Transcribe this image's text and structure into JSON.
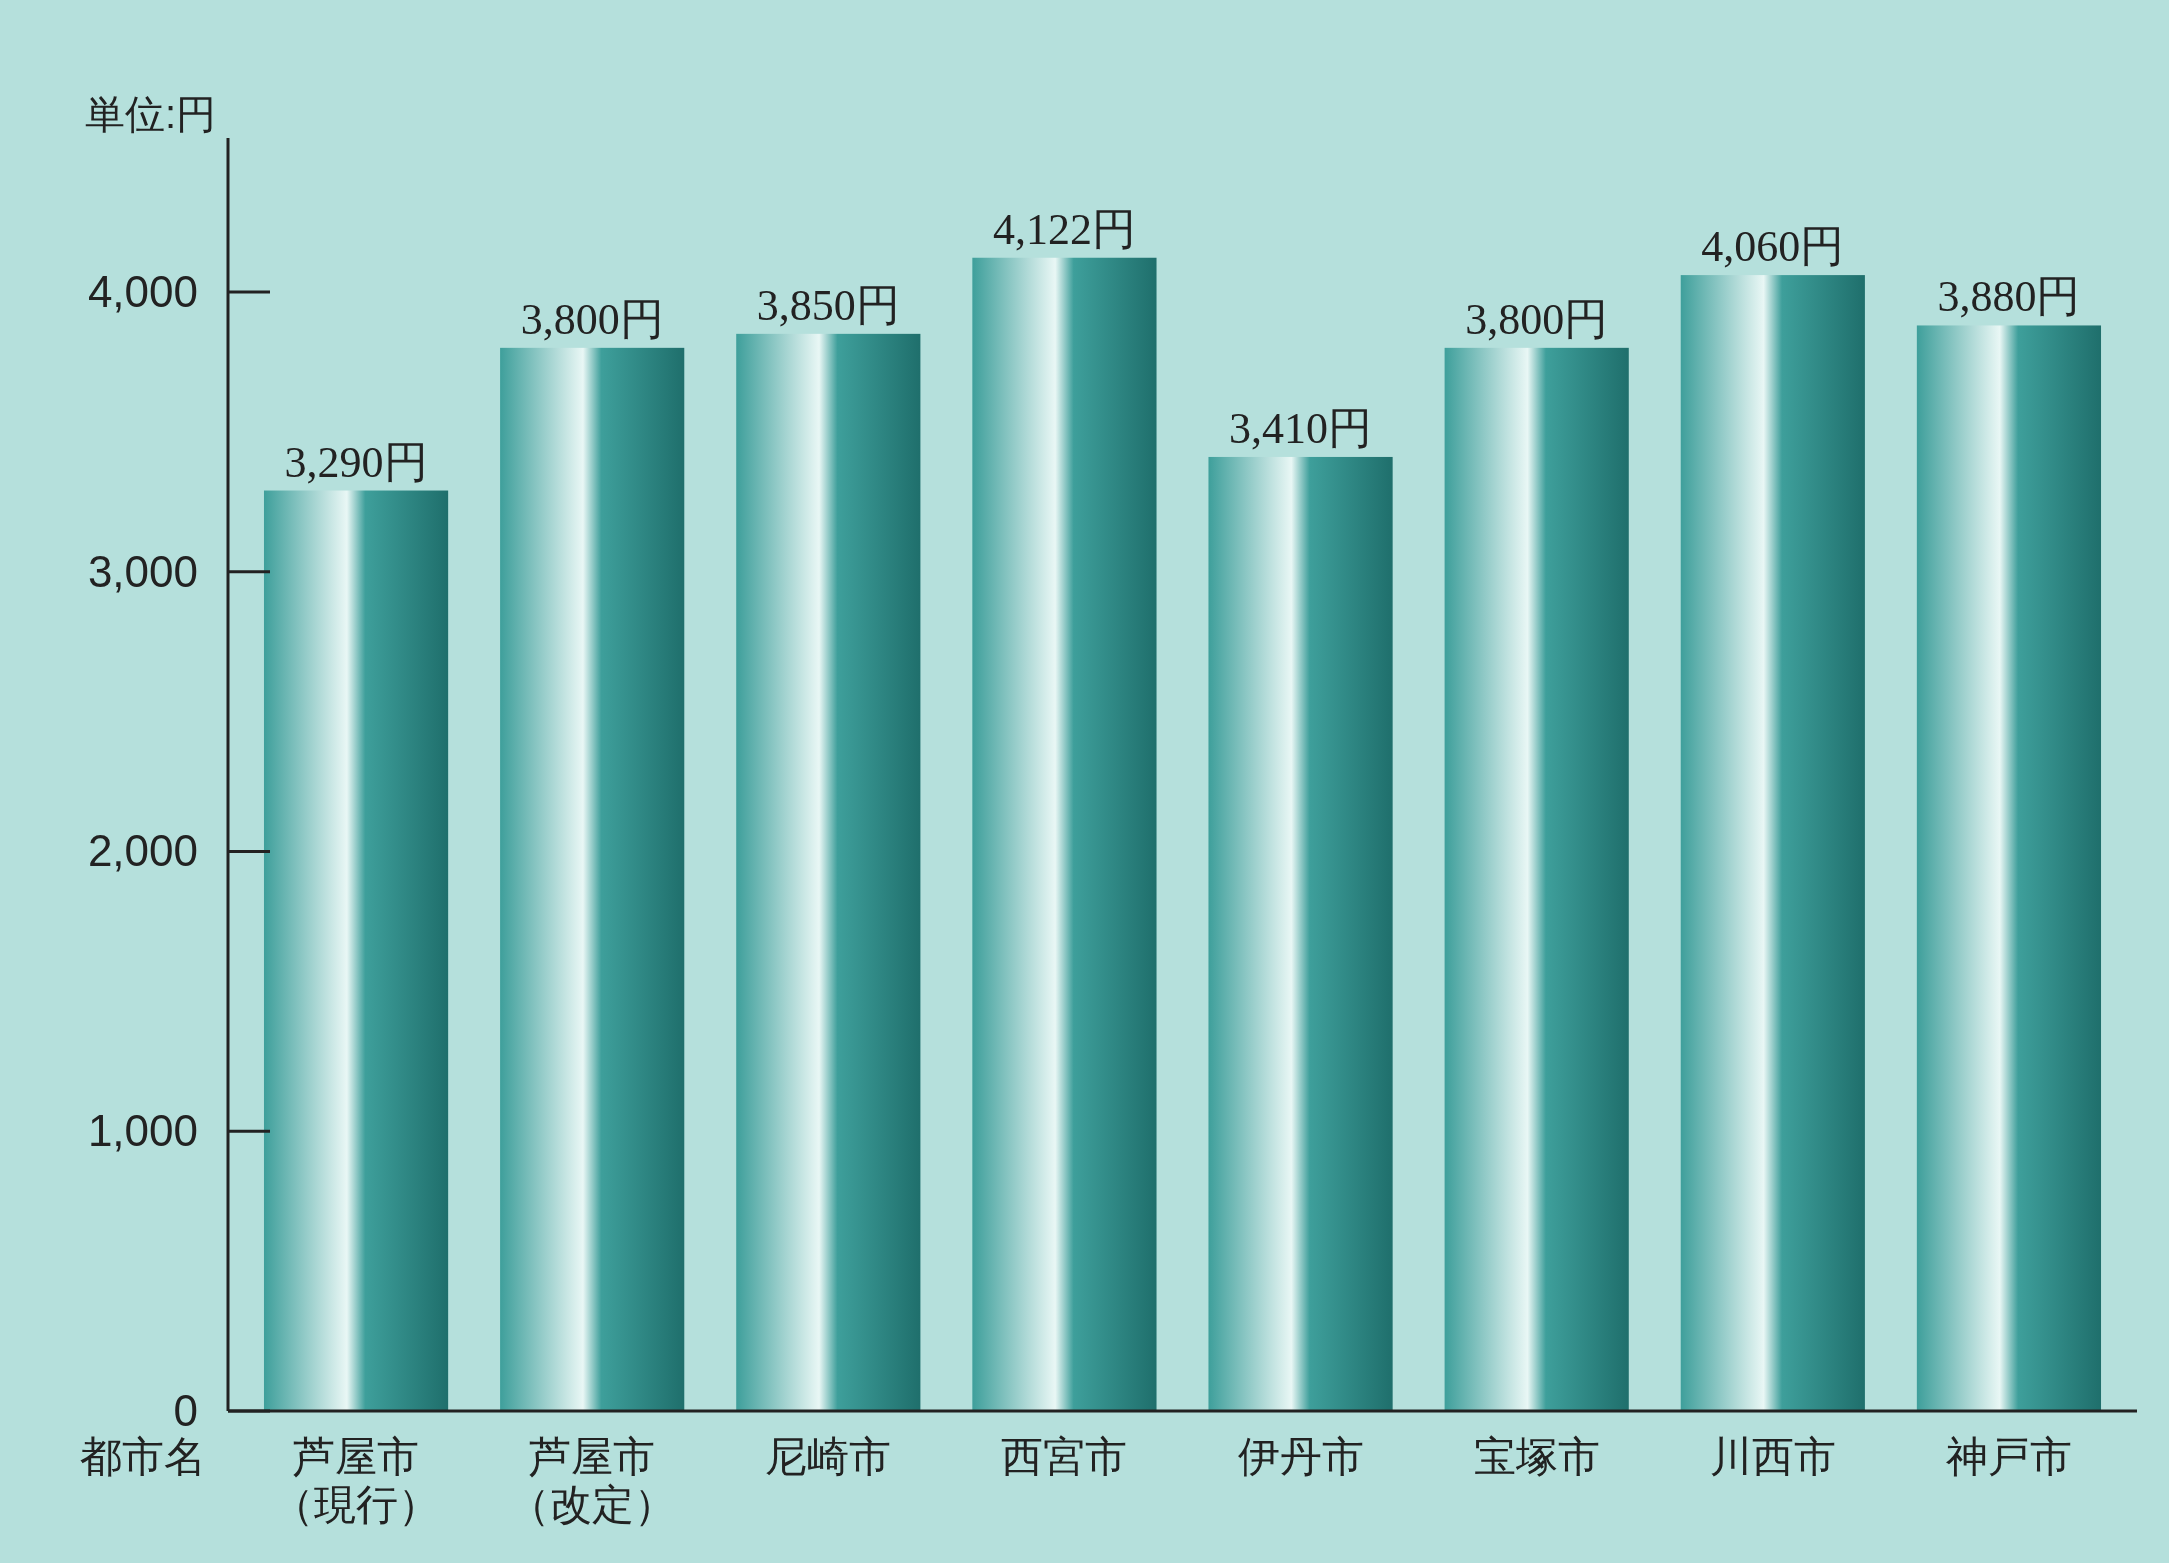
{
  "chart_data": {
    "type": "bar",
    "xlabel": "都市名",
    "ylabel": "単位:円",
    "categories": [
      "芦屋市（現行）",
      "芦屋市（改定）",
      "尼崎市",
      "西宮市",
      "伊丹市",
      "宝塚市",
      "川西市",
      "神戸市"
    ],
    "values": [
      3290,
      3800,
      3850,
      4122,
      3410,
      3800,
      4060,
      3880
    ],
    "value_labels": [
      "3,290円",
      "3,800円",
      "3,850円",
      "4,122円",
      "3,410円",
      "3,800円",
      "4,060円",
      "3,880円"
    ],
    "color": "#3e9f9b",
    "ylim": [
      0,
      4550
    ],
    "yticks": [
      0,
      {
        "value": 1000,
        "label": "1,000"
      },
      {
        "value": 2000,
        "label": "2,000"
      },
      {
        "value": 3000,
        "label": "3,000"
      },
      {
        "value": 4000,
        "label": "4,000"
      }
    ],
    "grid": false
  }
}
